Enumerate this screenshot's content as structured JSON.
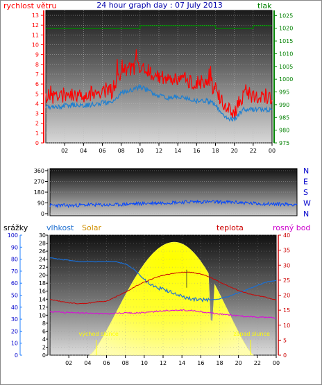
{
  "title": "24 hour graph day : 07 July 2013",
  "colors": {
    "wind": "#ff0000",
    "wind_avg": "#1e7fd0",
    "pressure": "#008000",
    "direction": "#0044ff",
    "humidity": "#1a6fd6",
    "temperature": "#cc0000",
    "dewpoint": "#e000e0",
    "solar": "#ffff00",
    "rain": "#2080ff",
    "title": "#0000aa"
  },
  "x_ticks": [
    "02",
    "04",
    "06",
    "08",
    "10",
    "12",
    "14",
    "16",
    "18",
    "20",
    "22",
    "00"
  ],
  "chart_data": [
    {
      "type": "line",
      "name": "wind-pressure",
      "left_label": "rychlost větru",
      "right_label": "tlak",
      "left_ticks": [
        0,
        1,
        2,
        3,
        4,
        5,
        6,
        7,
        8,
        9,
        10,
        11,
        12,
        13
      ],
      "right_ticks": [
        975,
        980,
        985,
        990,
        995,
        1000,
        1005,
        1010,
        1015,
        1020,
        1025
      ],
      "left_range": [
        0,
        13.5
      ],
      "right_range": [
        975,
        1027
      ],
      "hours": [
        0,
        1,
        2,
        3,
        4,
        5,
        6,
        7,
        8,
        9,
        10,
        11,
        12,
        13,
        14,
        15,
        16,
        17,
        18,
        19,
        20,
        21,
        22,
        23,
        24
      ],
      "series": [
        {
          "key": "wind_gust",
          "values": [
            4.8,
            4.7,
            4.9,
            5.0,
            4.8,
            5.1,
            5.4,
            5.3,
            7.4,
            7.6,
            7.9,
            7.3,
            6.7,
            6.4,
            6.6,
            6.4,
            6.2,
            6.0,
            5.4,
            3.5,
            3.2,
            4.9,
            4.9,
            4.6,
            4.3
          ]
        },
        {
          "key": "wind_avg",
          "values": [
            3.7,
            3.6,
            3.8,
            3.9,
            3.8,
            3.9,
            4.1,
            4.1,
            5.1,
            5.4,
            5.7,
            5.3,
            4.8,
            4.6,
            4.7,
            4.5,
            4.3,
            4.3,
            3.9,
            2.6,
            2.4,
            3.4,
            3.4,
            3.4,
            3.3
          ]
        },
        {
          "key": "pressure",
          "values": [
            1020,
            1020,
            1020,
            1020,
            1020,
            1020,
            1020,
            1020,
            1020,
            1020,
            1021,
            1021,
            1021,
            1021,
            1021,
            1021,
            1021,
            1021,
            1020,
            1020,
            1020,
            1020,
            1021,
            1021,
            1021
          ]
        }
      ]
    },
    {
      "type": "line",
      "name": "wind-direction",
      "left_ticks": [
        0,
        90,
        180,
        270,
        360
      ],
      "right_labels": [
        "N",
        "W",
        "S",
        "E",
        "N"
      ],
      "range": [
        0,
        360
      ],
      "series": [
        {
          "key": "direction",
          "hours": [
            0,
            2,
            4,
            6,
            8,
            10,
            12,
            14,
            16,
            18,
            20,
            22,
            24
          ],
          "values": [
            70,
            68,
            75,
            72,
            82,
            88,
            95,
            100,
            98,
            95,
            85,
            80,
            78
          ]
        }
      ]
    },
    {
      "type": "line",
      "name": "humidity-temperature-solar",
      "labels": {
        "rain": "srážky",
        "humidity": "vlhkost",
        "solar": "Solar",
        "temperature": "teplota",
        "dewpoint": "rosný bod"
      },
      "rain_ticks": [
        0,
        10,
        20,
        30,
        40,
        50,
        60,
        70,
        80,
        90,
        100
      ],
      "hum_ticks": [
        0,
        2,
        4,
        6,
        8,
        10,
        12,
        14,
        16,
        18,
        20,
        22,
        24,
        26,
        28,
        30
      ],
      "temp_ticks": [
        0,
        5,
        10,
        15,
        20,
        25,
        30,
        35,
        40
      ],
      "hours": [
        0,
        1,
        2,
        3,
        4,
        5,
        6,
        7,
        8,
        9,
        10,
        11,
        12,
        13,
        14,
        15,
        16,
        17,
        18,
        19,
        20,
        21,
        22,
        23,
        24
      ],
      "series": [
        {
          "key": "humidity",
          "values": [
            81,
            80,
            79,
            78,
            78,
            78,
            78,
            78,
            76,
            71,
            63,
            57,
            55,
            52,
            49,
            47,
            46,
            46,
            47,
            49,
            52,
            55,
            58,
            61,
            62
          ]
        },
        {
          "key": "temperature",
          "values": [
            18.5,
            18.0,
            17.5,
            17.2,
            17.3,
            17.8,
            18.0,
            19.5,
            21.0,
            22.8,
            24.4,
            25.6,
            26.6,
            27.2,
            27.6,
            27.6,
            27.1,
            26.0,
            24.4,
            22.9,
            21.6,
            20.5,
            19.9,
            19.2,
            18.4
          ]
        },
        {
          "key": "dewpoint",
          "values": [
            14.4,
            14.3,
            14.2,
            14.1,
            14.0,
            13.9,
            13.8,
            13.9,
            14.0,
            14.1,
            14.2,
            14.5,
            14.8,
            14.9,
            15.0,
            14.9,
            14.5,
            14.1,
            13.7,
            13.4,
            13.1,
            12.9,
            12.7,
            12.6,
            12.5
          ]
        }
      ],
      "solar_peak_hour": 13.2,
      "sunrise_hour": 4.9,
      "sunset_hour": 21.3,
      "sunrise_label": "východ slunce",
      "sunset_label": "západ slunce"
    }
  ]
}
